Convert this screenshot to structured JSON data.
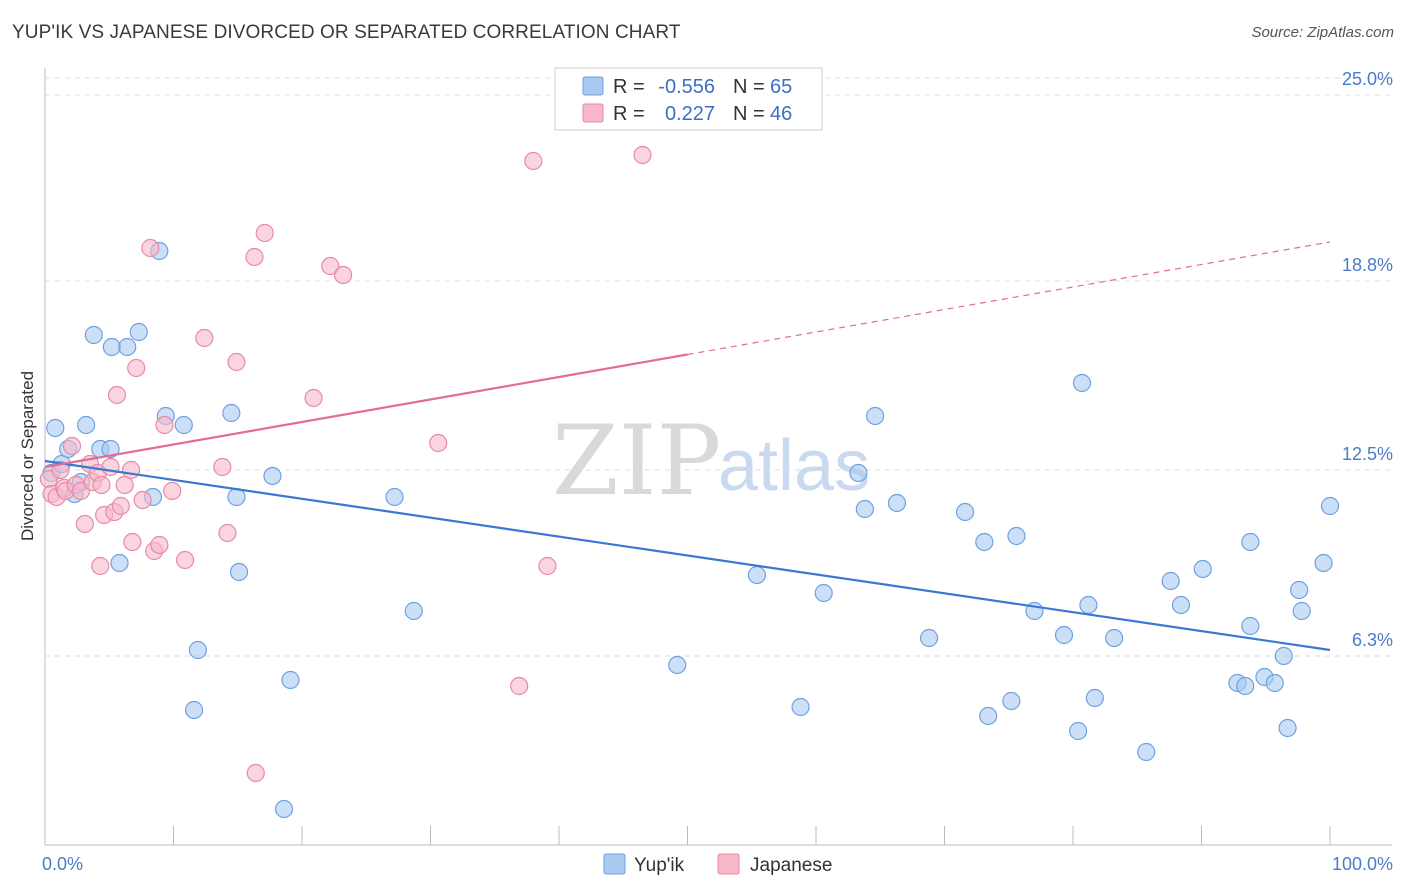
{
  "header": {
    "title": "YUP'IK VS JAPANESE DIVORCED OR SEPARATED CORRELATION CHART",
    "source": "Source: ZipAtlas.com"
  },
  "watermark": {
    "zip": "ZIP",
    "atlas": "atlas"
  },
  "legend": {
    "r_label": "R =",
    "n_label": "N =",
    "items": [
      {
        "name": "Yup'ik",
        "r": "-0.556",
        "n": "65",
        "color": "#a9c9f0",
        "stroke": "#6fa0e0"
      },
      {
        "name": "Japanese",
        "r": "0.227",
        "n": "46",
        "color": "#f7b8ca",
        "stroke": "#e889a6"
      }
    ]
  },
  "colors": {
    "blue_line": "#3a78d4",
    "pink_line": "#e36b94",
    "tick_label": "#4a7cc9",
    "grid": "#dddddd"
  },
  "chart_data": {
    "type": "scatter",
    "title": "YUP'IK VS JAPANESE DIVORCED OR SEPARATED CORRELATION CHART",
    "xlabel": "",
    "ylabel": "Divorced or Separated",
    "xlim": [
      0,
      100
    ],
    "ylim": [
      0,
      26.5
    ],
    "x_tick_labels": [
      {
        "value": 0,
        "label": "0.0%"
      },
      {
        "value": 100,
        "label": "100.0%"
      }
    ],
    "y_tick_labels": [
      {
        "value": 6.3,
        "label": "6.3%"
      },
      {
        "value": 12.5,
        "label": "12.5%"
      },
      {
        "value": 18.8,
        "label": "18.8%"
      },
      {
        "value": 25.0,
        "label": "25.0%"
      }
    ],
    "series": [
      {
        "name": "Yup'ik",
        "trend": {
          "x0": 0,
          "y0": 12.8,
          "x1": 100,
          "y1": 6.5,
          "dashed_from": null
        },
        "points": [
          [
            0.5,
            12.4
          ],
          [
            0.8,
            13.9
          ],
          [
            1.3,
            12.7
          ],
          [
            1.8,
            13.2
          ],
          [
            2.3,
            11.7
          ],
          [
            2.8,
            12.1
          ],
          [
            3.2,
            14.0
          ],
          [
            3.8,
            17.0
          ],
          [
            4.3,
            13.2
          ],
          [
            5.1,
            13.2
          ],
          [
            5.2,
            16.6
          ],
          [
            5.8,
            9.4
          ],
          [
            6.4,
            16.6
          ],
          [
            7.3,
            17.1
          ],
          [
            8.4,
            11.6
          ],
          [
            8.9,
            19.8
          ],
          [
            9.4,
            14.3
          ],
          [
            10.8,
            14.0
          ],
          [
            11.9,
            6.5
          ],
          [
            11.6,
            4.5
          ],
          [
            14.5,
            14.4
          ],
          [
            14.9,
            11.6
          ],
          [
            15.1,
            9.1
          ],
          [
            17.7,
            12.3
          ],
          [
            18.6,
            1.2
          ],
          [
            19.1,
            5.5
          ],
          [
            27.2,
            11.6
          ],
          [
            28.7,
            7.8
          ],
          [
            49.2,
            6.0
          ],
          [
            55.4,
            9.0
          ],
          [
            58.8,
            4.6
          ],
          [
            60.6,
            8.4
          ],
          [
            63.3,
            12.4
          ],
          [
            63.8,
            11.2
          ],
          [
            64.6,
            14.3
          ],
          [
            66.3,
            11.4
          ],
          [
            68.8,
            6.9
          ],
          [
            71.6,
            11.1
          ],
          [
            73.1,
            10.1
          ],
          [
            73.4,
            4.3
          ],
          [
            75.2,
            4.8
          ],
          [
            75.6,
            10.3
          ],
          [
            77.0,
            7.8
          ],
          [
            79.3,
            7.0
          ],
          [
            80.4,
            3.8
          ],
          [
            81.2,
            8.0
          ],
          [
            83.2,
            6.9
          ],
          [
            80.7,
            15.4
          ],
          [
            81.7,
            4.9
          ],
          [
            85.7,
            3.1
          ],
          [
            87.6,
            8.8
          ],
          [
            88.4,
            8.0
          ],
          [
            90.1,
            9.2
          ],
          [
            92.8,
            5.4
          ],
          [
            93.4,
            5.3
          ],
          [
            93.8,
            7.3
          ],
          [
            93.8,
            10.1
          ],
          [
            94.9,
            5.6
          ],
          [
            95.7,
            5.4
          ],
          [
            96.4,
            6.3
          ],
          [
            96.7,
            3.9
          ],
          [
            97.6,
            8.5
          ],
          [
            97.8,
            7.8
          ],
          [
            99.5,
            9.4
          ],
          [
            100.0,
            11.3
          ]
        ]
      },
      {
        "name": "Japanese",
        "trend": {
          "x0": 0,
          "y0": 12.6,
          "x1": 100,
          "y1": 20.1,
          "dashed_from": 50
        },
        "points": [
          [
            0.3,
            12.2
          ],
          [
            0.5,
            11.7
          ],
          [
            0.9,
            11.6
          ],
          [
            1.2,
            12.5
          ],
          [
            1.5,
            11.9
          ],
          [
            1.6,
            11.8
          ],
          [
            2.1,
            13.3
          ],
          [
            2.4,
            12.0
          ],
          [
            2.8,
            11.8
          ],
          [
            3.1,
            10.7
          ],
          [
            3.5,
            12.7
          ],
          [
            3.7,
            12.1
          ],
          [
            4.1,
            12.4
          ],
          [
            4.3,
            9.3
          ],
          [
            4.4,
            12.0
          ],
          [
            4.6,
            11.0
          ],
          [
            5.1,
            12.6
          ],
          [
            5.4,
            11.1
          ],
          [
            5.6,
            15.0
          ],
          [
            5.9,
            11.3
          ],
          [
            6.2,
            12.0
          ],
          [
            6.7,
            12.5
          ],
          [
            6.8,
            10.1
          ],
          [
            7.1,
            15.9
          ],
          [
            7.6,
            11.5
          ],
          [
            8.2,
            19.9
          ],
          [
            8.5,
            9.8
          ],
          [
            8.9,
            10.0
          ],
          [
            9.3,
            14.0
          ],
          [
            9.9,
            11.8
          ],
          [
            10.9,
            9.5
          ],
          [
            12.4,
            16.9
          ],
          [
            13.8,
            12.6
          ],
          [
            14.2,
            10.4
          ],
          [
            14.9,
            16.1
          ],
          [
            16.4,
            2.4
          ],
          [
            16.3,
            19.6
          ],
          [
            17.1,
            20.4
          ],
          [
            20.9,
            14.9
          ],
          [
            22.2,
            19.3
          ],
          [
            23.2,
            19.0
          ],
          [
            30.6,
            13.4
          ],
          [
            36.9,
            5.3
          ],
          [
            39.1,
            9.3
          ],
          [
            46.5,
            23.0
          ],
          [
            38.0,
            22.8
          ]
        ]
      }
    ]
  }
}
